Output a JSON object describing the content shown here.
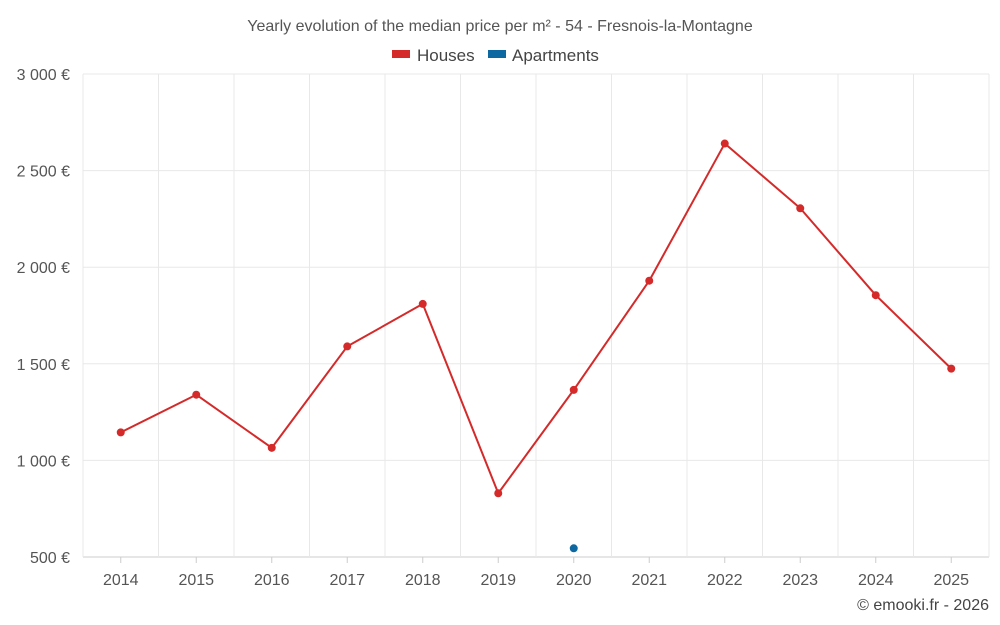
{
  "chart_data": {
    "type": "line",
    "title": "Yearly evolution of the median price per m² - 54 - Fresnois-la-Montagne",
    "categories": [
      "2014",
      "2015",
      "2016",
      "2017",
      "2018",
      "2019",
      "2020",
      "2021",
      "2022",
      "2023",
      "2024",
      "2025"
    ],
    "series": [
      {
        "name": "Houses",
        "color": "#d42a2a",
        "values": [
          1145,
          1340,
          1065,
          1590,
          1810,
          830,
          1365,
          1930,
          2640,
          2305,
          1855,
          1475
        ]
      },
      {
        "name": "Apartments",
        "color": "#0d67a0",
        "values": [
          null,
          null,
          null,
          null,
          null,
          null,
          545,
          null,
          null,
          null,
          null,
          null
        ]
      }
    ],
    "ylim": [
      500,
      3000
    ],
    "yticks": [
      500,
      1000,
      1500,
      2000,
      2500,
      3000
    ],
    "ytick_labels": [
      "500 €",
      "1 000 €",
      "1 500 €",
      "2 000 €",
      "2 500 €",
      "3 000 €"
    ],
    "xlabel": "",
    "ylabel": "",
    "legend_position": "top-center",
    "grid": true
  },
  "credit": "© emooki.fr - 2026"
}
